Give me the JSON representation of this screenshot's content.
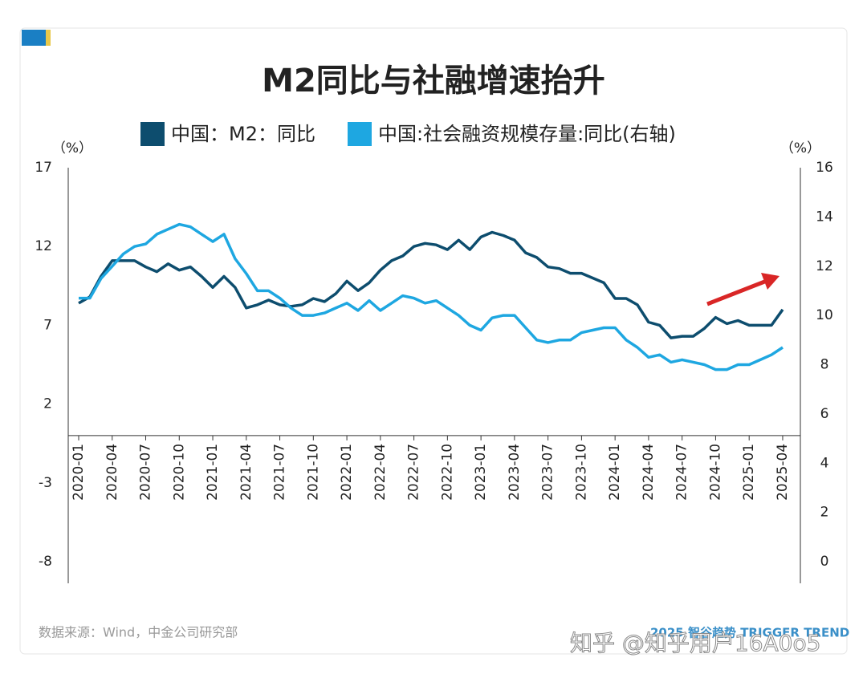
{
  "chart_data": {
    "type": "line",
    "title": "M2同比与社融增速抬升",
    "y_unit": "（%）",
    "y2_unit": "（%）",
    "source": "数据来源：Wind，中金公司研究部",
    "watermark": "知乎 @知乎用户16A0o5",
    "logo": "2025 智谷趋势 TRIGGER TREND",
    "categories": [
      "2020-01",
      null,
      null,
      "2020-04",
      null,
      null,
      "2020-07",
      null,
      null,
      "2020-10",
      null,
      null,
      "2021-01",
      null,
      null,
      "2021-04",
      null,
      null,
      "2021-07",
      null,
      null,
      "2021-10",
      null,
      null,
      "2022-01",
      null,
      null,
      "2022-04",
      null,
      null,
      "2022-07",
      null,
      null,
      "2022-10",
      null,
      null,
      "2023-01",
      null,
      null,
      "2023-04",
      null,
      null,
      "2023-07",
      null,
      null,
      "2023-10",
      null,
      null,
      "2024-01",
      null,
      null,
      "2024-04",
      null,
      null,
      "2024-07",
      null,
      null,
      "2024-10",
      null,
      null,
      "2025-01",
      null,
      null,
      "2025-04"
    ],
    "series": [
      {
        "name": "中国：M2：同比",
        "color": "#0d4d6e",
        "values": [
          8.4,
          8.8,
          10.1,
          11.1,
          11.1,
          11.1,
          10.7,
          10.4,
          10.9,
          10.5,
          10.7,
          10.1,
          9.4,
          10.1,
          9.4,
          8.1,
          8.3,
          8.6,
          8.3,
          8.2,
          8.3,
          8.7,
          8.5,
          9.0,
          9.8,
          9.2,
          9.7,
          10.5,
          11.1,
          11.4,
          12.0,
          12.2,
          12.1,
          11.8,
          12.4,
          11.8,
          12.6,
          12.9,
          12.7,
          12.4,
          11.6,
          11.3,
          10.7,
          10.6,
          10.3,
          10.3,
          10.0,
          9.7,
          8.7,
          8.7,
          8.3,
          7.2,
          7.0,
          6.2,
          6.3,
          6.3,
          6.8,
          7.5,
          7.1,
          7.3,
          7.0,
          7.0,
          7.0,
          8.0
        ]
      },
      {
        "name": "中国:社会融资规模存量:同比(右轴)",
        "color": "#1ea7e1",
        "axis": "y2",
        "values": [
          10.7,
          10.7,
          11.5,
          12.0,
          12.5,
          12.8,
          12.9,
          13.3,
          13.5,
          13.7,
          13.6,
          13.3,
          13.0,
          13.3,
          12.3,
          11.7,
          11.0,
          11.0,
          10.7,
          10.3,
          10.0,
          10.0,
          10.1,
          10.3,
          10.5,
          10.2,
          10.6,
          10.2,
          10.5,
          10.8,
          10.7,
          10.5,
          10.6,
          10.3,
          10.0,
          9.6,
          9.4,
          9.9,
          10.0,
          10.0,
          9.5,
          9.0,
          8.9,
          9.0,
          9.0,
          9.3,
          9.4,
          9.5,
          9.5,
          9.0,
          8.7,
          8.3,
          8.4,
          8.1,
          8.2,
          8.1,
          8.0,
          7.8,
          7.8,
          8.0,
          8.0,
          8.2,
          8.4,
          8.7
        ]
      }
    ],
    "ylim": [
      -8,
      17
    ],
    "yticks": [
      -8,
      -3,
      2,
      7,
      12,
      17
    ],
    "y2lim": [
      0,
      16
    ],
    "y2ticks": [
      0,
      2,
      4,
      6,
      8,
      10,
      12,
      14,
      16
    ],
    "grid": false
  }
}
